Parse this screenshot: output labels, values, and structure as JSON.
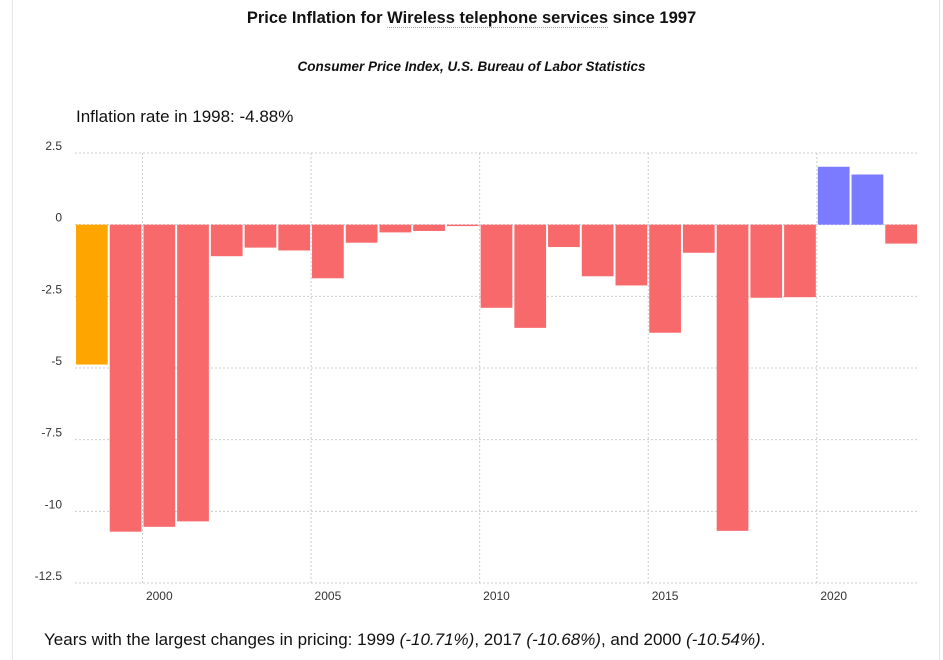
{
  "header": {
    "title_prefix": "Price Inflation for ",
    "title_item": "Wireless telephone services",
    "title_suffix": " since 1997",
    "subtitle": "Consumer Price Index, U.S. Bureau of Labor Statistics",
    "rate_label": "Inflation rate in 1998: -4.88%"
  },
  "footer": {
    "prefix": "Years with the largest changes in pricing: ",
    "y1": "1999",
    "v1": "(-10.71%)",
    "y2": "2017",
    "v2": "(-10.68%)",
    "y3": "2000",
    "v3": "(-10.54%)",
    "sep1": ", ",
    "sep2": ", and ",
    "end": "."
  },
  "chart_data": {
    "type": "bar",
    "x": [
      1998,
      1999,
      2000,
      2001,
      2002,
      2003,
      2004,
      2005,
      2006,
      2007,
      2008,
      2009,
      2010,
      2011,
      2012,
      2013,
      2014,
      2015,
      2016,
      2017,
      2018,
      2019,
      2020,
      2021,
      2022
    ],
    "values": [
      -4.88,
      -10.71,
      -10.54,
      -10.35,
      -1.1,
      -0.8,
      -0.9,
      -1.87,
      -0.63,
      -0.27,
      -0.22,
      -0.05,
      -2.9,
      -3.6,
      -0.78,
      -1.8,
      -2.12,
      -3.77,
      -0.98,
      -10.68,
      -2.55,
      -2.53,
      2.02,
      1.75,
      -0.66
    ],
    "highlight_index": 0,
    "ylim": [
      -12.5,
      2.5
    ],
    "yticks": [
      2.5,
      0,
      -2.5,
      -5,
      -7.5,
      -10,
      -12.5
    ],
    "xticks": [
      2000,
      2005,
      2010,
      2015,
      2020
    ],
    "grid": true,
    "colors": {
      "highlight": "#FFA500",
      "negative": "#F8696B",
      "positive": "#7B7BFF",
      "grid": "#cccccc"
    }
  }
}
